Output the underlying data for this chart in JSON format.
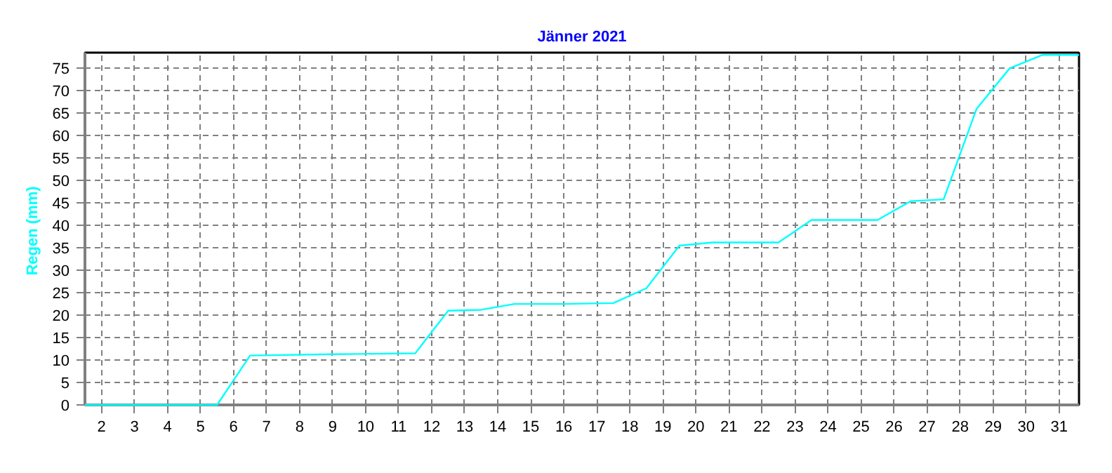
{
  "chart_data": {
    "type": "line",
    "title": "Jänner 2021",
    "ylabel": "Regen  (mm)",
    "series": [
      {
        "color": "#00ffff",
        "x": [
          1.5,
          5.5,
          6.5,
          9,
          11.5,
          12.5,
          13.5,
          14.5,
          16,
          17.5,
          18.5,
          19.5,
          20.5,
          22.5,
          23.5,
          25.5,
          26.5,
          27.5,
          28.5,
          29.5,
          30.5,
          31.6
        ],
        "values": [
          0,
          0,
          11,
          11.3,
          11.5,
          21,
          21.2,
          22.5,
          22.5,
          22.7,
          26,
          35.5,
          36.2,
          36.2,
          41.2,
          41.2,
          45.4,
          45.8,
          66,
          75,
          78,
          78
        ]
      }
    ],
    "xlim": [
      1.5,
      31.6
    ],
    "ylim": [
      0,
      78.5
    ],
    "xticks": [
      2,
      3,
      4,
      5,
      6,
      7,
      8,
      9,
      10,
      11,
      12,
      13,
      14,
      15,
      16,
      17,
      18,
      19,
      20,
      21,
      22,
      23,
      24,
      25,
      26,
      27,
      28,
      29,
      30,
      31
    ],
    "yticks": [
      0,
      5,
      10,
      15,
      20,
      25,
      30,
      35,
      40,
      45,
      50,
      55,
      60,
      65,
      70,
      75
    ],
    "grid": true,
    "marker": "none",
    "line_style": "solid"
  }
}
